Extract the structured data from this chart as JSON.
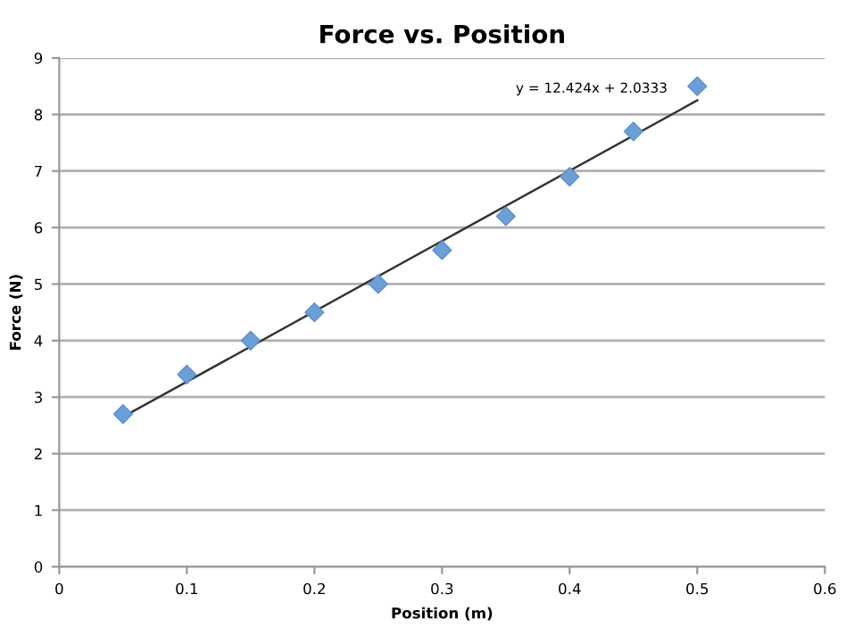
{
  "chart_data": {
    "type": "scatter",
    "title": "Force vs. Position",
    "xlabel": "Position (m)",
    "ylabel": "Force (N)",
    "x": [
      0.05,
      0.1,
      0.15,
      0.2,
      0.25,
      0.3,
      0.35,
      0.4,
      0.45,
      0.5
    ],
    "series": [
      {
        "color": "#6a9fd8",
        "marker": "diamond",
        "values": [
          2.7,
          3.4,
          4.0,
          4.5,
          5.0,
          5.6,
          6.2,
          6.9,
          7.7,
          8.5
        ]
      },
      {
        "type": "line",
        "color": "#333333",
        "marker": "none",
        "line_style": "solid",
        "x": [
          0.05,
          0.5
        ],
        "values": [
          2.65,
          8.25
        ]
      }
    ],
    "annotations": [
      {
        "text": "y = 12.424x + 2.0333",
        "x": 0.5,
        "y": 8.25
      }
    ],
    "xlim": [
      0,
      0.6
    ],
    "xticks": [
      0,
      0.1,
      0.2,
      0.3,
      0.4,
      0.5,
      0.6
    ],
    "ylim": [
      0,
      9
    ],
    "yticks": [
      0,
      1,
      2,
      3,
      4,
      5,
      6,
      7,
      8,
      9
    ],
    "grid": "y",
    "legend": false
  }
}
